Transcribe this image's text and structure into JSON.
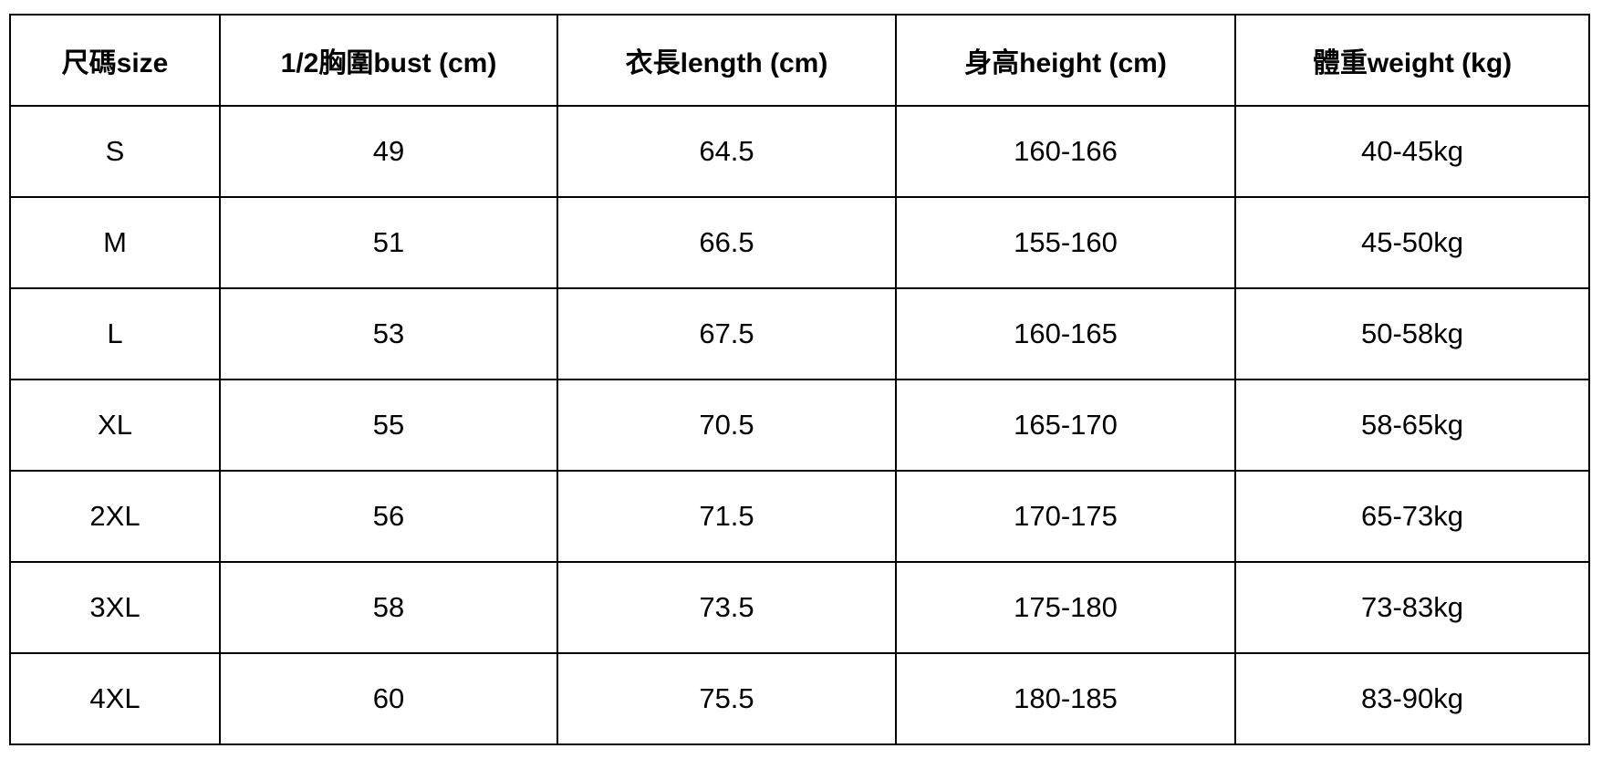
{
  "chart_data": {
    "type": "table",
    "columns": [
      {
        "key": "size",
        "label": "尺碼size"
      },
      {
        "key": "bust",
        "label": "1/2胸圍bust (cm)"
      },
      {
        "key": "length",
        "label": "衣長length (cm)"
      },
      {
        "key": "height",
        "label": "身高height (cm)"
      },
      {
        "key": "weight",
        "label": "體重weight (kg)"
      }
    ],
    "rows": [
      [
        "S",
        "49",
        "64.5",
        "160-166",
        "40-45kg"
      ],
      [
        "M",
        "51",
        "66.5",
        "155-160",
        "45-50kg"
      ],
      [
        "L",
        "53",
        "67.5",
        "160-165",
        "50-58kg"
      ],
      [
        "XL",
        "55",
        "70.5",
        "165-170",
        "58-65kg"
      ],
      [
        "2XL",
        "56",
        "71.5",
        "170-175",
        "65-73kg"
      ],
      [
        "3XL",
        "58",
        "73.5",
        "175-180",
        "73-83kg"
      ],
      [
        "4XL",
        "60",
        "75.5",
        "180-185",
        "83-90kg"
      ]
    ]
  },
  "colors": {
    "background": "#ffffff",
    "border": "#000000",
    "text": "#000000"
  }
}
